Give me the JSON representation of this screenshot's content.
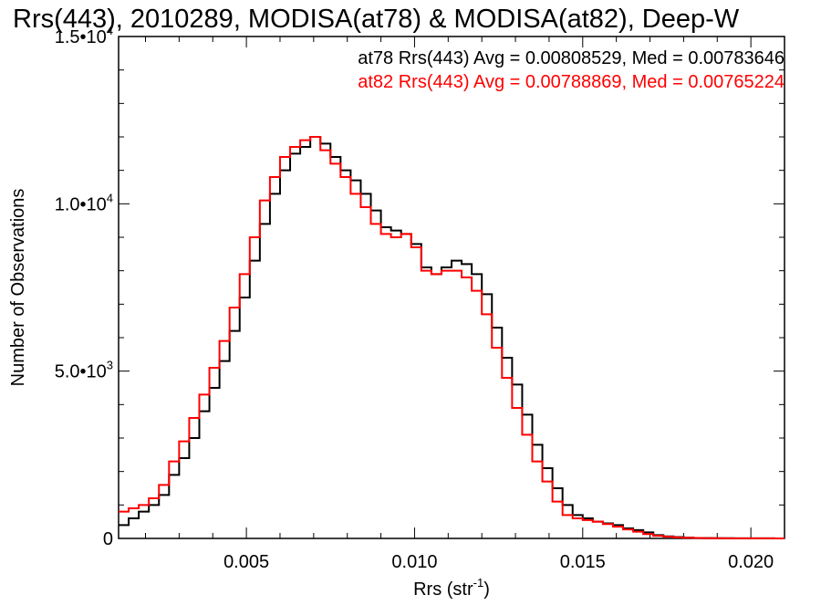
{
  "chart_data": {
    "type": "line",
    "step": true,
    "title": "Rrs(443), 2010289, MODISA(at78) & MODISA(at82), Deep-W",
    "xlabel": "Rrs (str",
    "xlabel_sup": "-1",
    "xlabel_close": ")",
    "ylabel": "Number of Observations",
    "xlim": [
      0.0012,
      0.021
    ],
    "ylim": [
      0,
      15000
    ],
    "x_ticks": [
      {
        "value": 0.005,
        "label": "0.005"
      },
      {
        "value": 0.01,
        "label": "0.010"
      },
      {
        "value": 0.015,
        "label": "0.015"
      },
      {
        "value": 0.02,
        "label": "0.020"
      }
    ],
    "y_ticks": [
      {
        "value": 0,
        "label": "0"
      },
      {
        "value": 5000,
        "label": "5.0•10",
        "sup": "3"
      },
      {
        "value": 10000,
        "label": "1.0•10",
        "sup": "4"
      },
      {
        "value": 15000,
        "label": "1.5•10",
        "sup": "4"
      }
    ],
    "grid": false,
    "legend_position": "top-right",
    "series": [
      {
        "name": "at78",
        "color": "#000000",
        "legend": "at78 Rrs(443) Avg = 0.00808529, Med = 0.00783646",
        "x": [
          0.0012,
          0.0015,
          0.0018,
          0.0021,
          0.0024,
          0.0027,
          0.003,
          0.0033,
          0.0036,
          0.0039,
          0.0042,
          0.0045,
          0.0048,
          0.0051,
          0.0054,
          0.0057,
          0.006,
          0.0063,
          0.0066,
          0.0069,
          0.0072,
          0.0075,
          0.0078,
          0.0081,
          0.0084,
          0.0087,
          0.009,
          0.0093,
          0.0096,
          0.0099,
          0.0102,
          0.0105,
          0.0108,
          0.0111,
          0.0114,
          0.0117,
          0.012,
          0.0123,
          0.0126,
          0.0129,
          0.0132,
          0.0135,
          0.0138,
          0.0141,
          0.0144,
          0.0147,
          0.015,
          0.0153,
          0.0156,
          0.0159,
          0.0162,
          0.0165,
          0.0168,
          0.0171,
          0.0174,
          0.0177,
          0.018,
          0.0183,
          0.0186,
          0.0189,
          0.0192,
          0.0195,
          0.0198,
          0.0201,
          0.0204,
          0.0207,
          0.021
        ],
        "y": [
          400,
          600,
          800,
          1000,
          1300,
          1900,
          2400,
          3000,
          3800,
          4500,
          5300,
          6200,
          7200,
          8300,
          9400,
          10300,
          11000,
          11500,
          11700,
          12000,
          11800,
          11400,
          11000,
          10700,
          10300,
          9800,
          9300,
          9200,
          9100,
          8800,
          8100,
          7900,
          8100,
          8300,
          8200,
          7900,
          7300,
          6300,
          5400,
          4600,
          3700,
          2800,
          2100,
          1500,
          1000,
          700,
          600,
          500,
          450,
          400,
          300,
          250,
          180,
          100,
          60,
          40,
          25,
          15,
          10,
          8,
          6,
          5,
          4,
          3,
          2,
          1,
          1
        ]
      },
      {
        "name": "at82",
        "color": "#ff0000",
        "legend": "at82 Rrs(443) Avg = 0.00788869, Med = 0.00765224",
        "x": [
          0.0012,
          0.0015,
          0.0018,
          0.0021,
          0.0024,
          0.0027,
          0.003,
          0.0033,
          0.0036,
          0.0039,
          0.0042,
          0.0045,
          0.0048,
          0.0051,
          0.0054,
          0.0057,
          0.006,
          0.0063,
          0.0066,
          0.0069,
          0.0072,
          0.0075,
          0.0078,
          0.0081,
          0.0084,
          0.0087,
          0.009,
          0.0093,
          0.0096,
          0.0099,
          0.0102,
          0.0105,
          0.0108,
          0.0111,
          0.0114,
          0.0117,
          0.012,
          0.0123,
          0.0126,
          0.0129,
          0.0132,
          0.0135,
          0.0138,
          0.0141,
          0.0144,
          0.0147,
          0.015,
          0.0153,
          0.0156,
          0.0159,
          0.0162,
          0.0165,
          0.0168,
          0.0171,
          0.0174,
          0.0177,
          0.018,
          0.0183,
          0.0186,
          0.0189,
          0.0192,
          0.0195,
          0.0198,
          0.0201,
          0.0204,
          0.0207,
          0.021
        ],
        "y": [
          800,
          900,
          1000,
          1200,
          1600,
          2300,
          2900,
          3600,
          4300,
          5100,
          5900,
          6900,
          7900,
          9000,
          10100,
          10800,
          11400,
          11700,
          11900,
          12000,
          11600,
          11200,
          10800,
          10300,
          9900,
          9400,
          9100,
          9000,
          9100,
          8700,
          8000,
          7900,
          8000,
          8000,
          7800,
          7400,
          6700,
          5700,
          4800,
          3900,
          3100,
          2300,
          1700,
          1100,
          700,
          600,
          550,
          500,
          430,
          350,
          270,
          200,
          130,
          80,
          50,
          30,
          20,
          12,
          8,
          6,
          5,
          4,
          3,
          2,
          2,
          1,
          1
        ]
      }
    ]
  }
}
